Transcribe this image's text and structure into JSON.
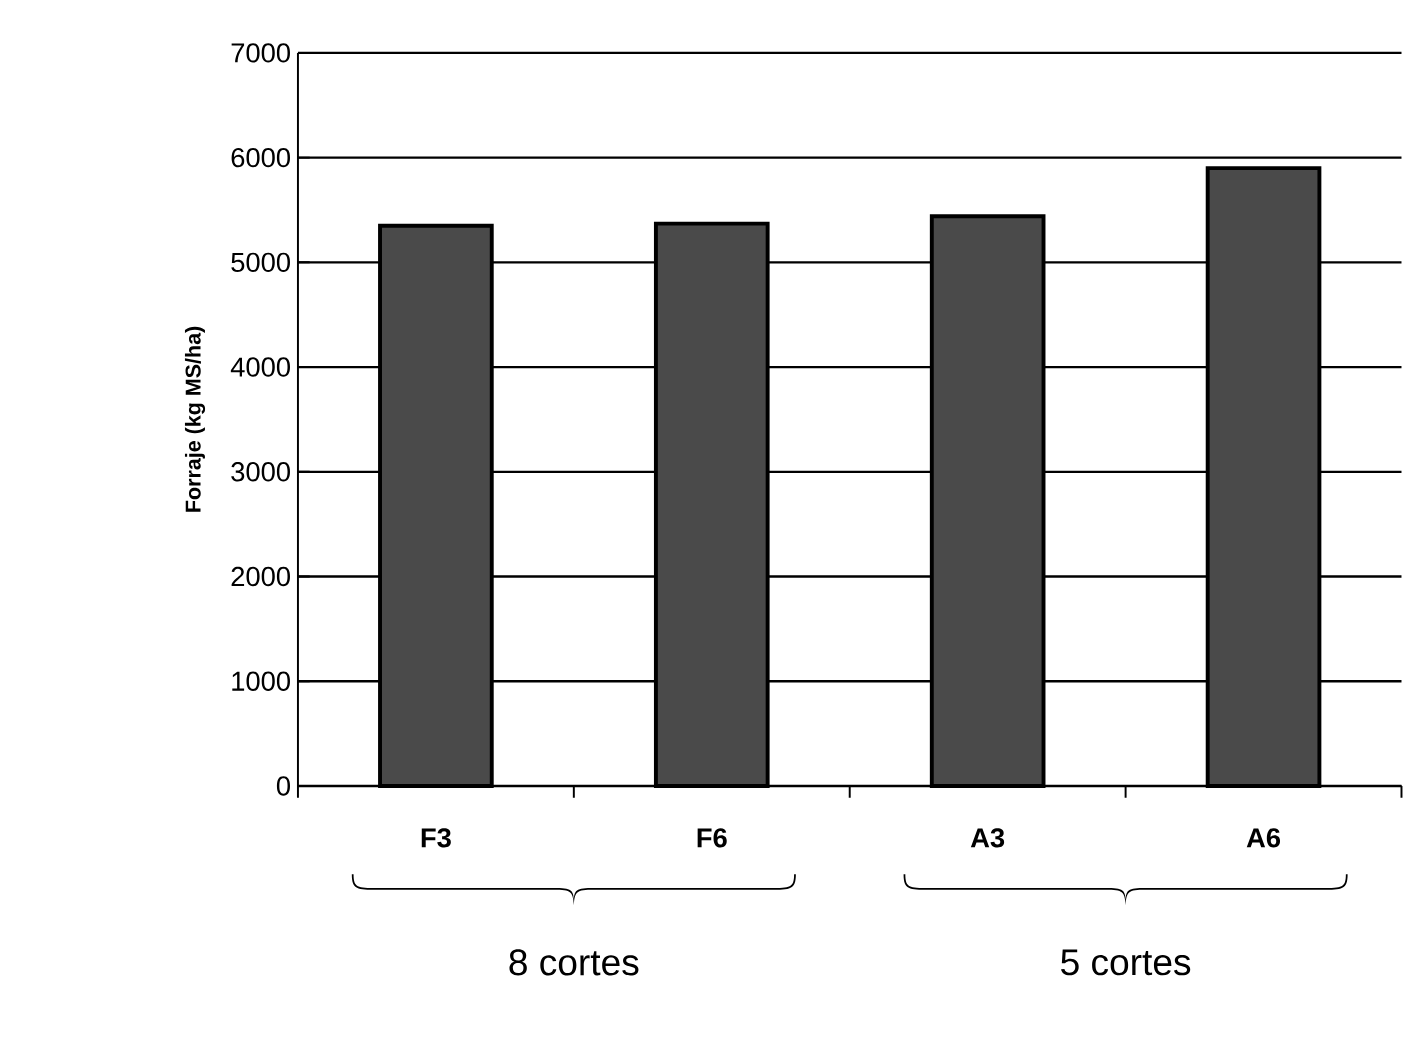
{
  "chart_data": {
    "type": "bar",
    "ylabel": "Forraje (kg MS/ha)",
    "categories": [
      "F3",
      "F6",
      "A3",
      "A6"
    ],
    "values": [
      5350,
      5370,
      5440,
      5900
    ],
    "color": "#4a4a4a",
    "ylim": [
      0,
      7000
    ],
    "yticks": [
      0,
      1000,
      2000,
      3000,
      4000,
      5000,
      6000,
      7000
    ],
    "grid": "y",
    "annotations": [
      "8 cortes",
      "5 cortes"
    ]
  }
}
